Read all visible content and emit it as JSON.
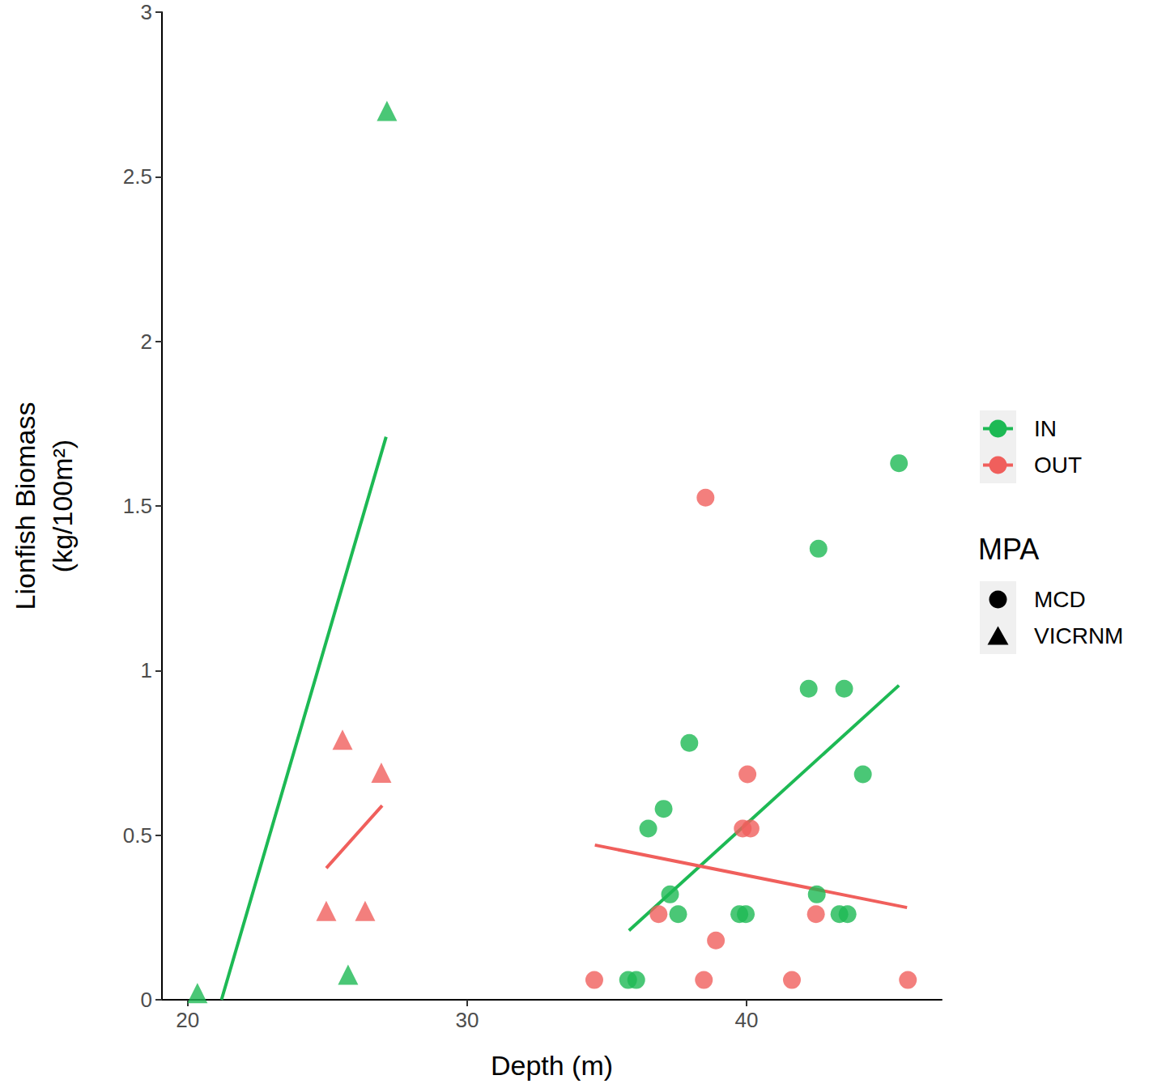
{
  "chart_data": {
    "type": "scatter",
    "x_label": "Depth (m)",
    "y_label": "Lionfish Biomass\n(kg/100m²)",
    "xlim": [
      19.08,
      46.98
    ],
    "xticks": [
      20,
      30,
      40
    ],
    "ylim": [
      0,
      3
    ],
    "yticks": [
      0,
      0.5,
      1,
      1.5,
      2,
      2.5,
      3
    ],
    "grid": false,
    "legend_title": "MPA",
    "series": [
      {
        "name": "IN",
        "group": "MCD",
        "marker": "circle",
        "color": "#1db954",
        "x": [
          45.45,
          42.57,
          42.22,
          43.49,
          37.95,
          37.03,
          36.48,
          44.16,
          37.26,
          37.55,
          42.51,
          39.74,
          39.97,
          43.32,
          43.61,
          35.76,
          36.05
        ],
        "values": [
          1.63,
          1.37,
          0.945,
          0.945,
          0.78,
          0.58,
          0.52,
          0.685,
          0.32,
          0.26,
          0.32,
          0.26,
          0.26,
          0.26,
          0.26,
          0.06,
          0.06
        ],
        "fit": {
          "x": [
            35.79,
            45.45
          ],
          "values": [
            0.21,
            0.955
          ]
        }
      },
      {
        "name": "IN",
        "group": "VICRNM",
        "marker": "triangle",
        "color": "#1db954",
        "x": [
          20.35,
          27.13,
          25.74
        ],
        "values": [
          0.02,
          2.7,
          0.076
        ],
        "fit": {
          "x": [
            21.21,
            27.1
          ],
          "values": [
            0,
            1.71
          ]
        }
      },
      {
        "name": "OUT",
        "group": "MCD",
        "marker": "circle",
        "color": "#f05f5c",
        "x": [
          38.53,
          40.03,
          39.86,
          40.14,
          36.85,
          42.48,
          38.9,
          34.55,
          38.47,
          41.62,
          45.77
        ],
        "values": [
          1.525,
          0.685,
          0.52,
          0.52,
          0.26,
          0.26,
          0.18,
          0.06,
          0.06,
          0.06,
          0.06
        ],
        "fit": {
          "x": [
            34.57,
            45.74
          ],
          "values": [
            0.47,
            0.28
          ]
        }
      },
      {
        "name": "OUT",
        "group": "VICRNM",
        "marker": "triangle",
        "color": "#f05f5c",
        "x": [
          25.54,
          26.93,
          24.96,
          26.35
        ],
        "values": [
          0.79,
          0.69,
          0.27,
          0.27
        ],
        "fit": {
          "x": [
            24.96,
            26.96
          ],
          "values": [
            0.4,
            0.59
          ]
        }
      }
    ]
  }
}
